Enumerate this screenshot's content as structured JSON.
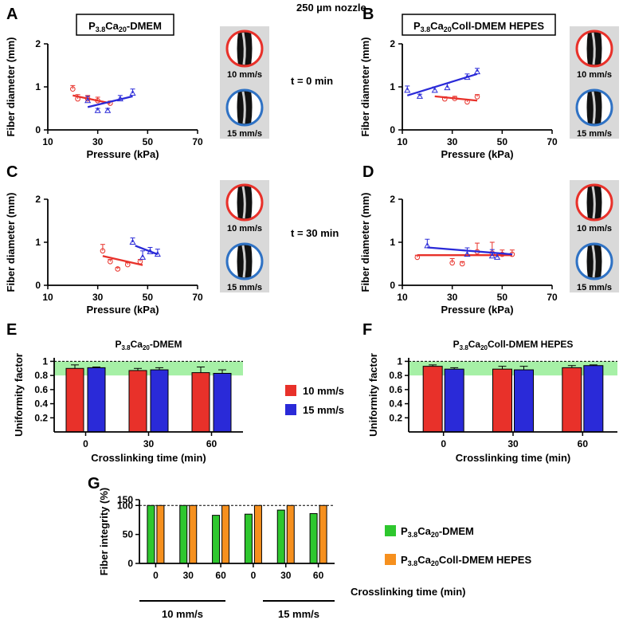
{
  "header": "250 µm nozzle",
  "colors": {
    "red": "#e8312a",
    "blue": "#2a2ad8",
    "green": "#2ec72e",
    "orange": "#f6901e",
    "band": "#a6f0a6",
    "grey": "#d9d9d9"
  },
  "legend_speeds": [
    "10 mm/s",
    "15 mm/s"
  ],
  "time_labels": [
    "t = 0 min",
    "t = 30 min"
  ],
  "chart_data": [
    {
      "panel": "A",
      "type": "scatter",
      "title": "P3.8Ca20-DMEM",
      "xlabel": "Pressure (kPa)",
      "ylabel": "Fiber diameter (mm)",
      "xlim": [
        10,
        70
      ],
      "ylim": [
        0,
        2
      ],
      "xticks": [
        10,
        30,
        50,
        70
      ],
      "yticks": [
        0,
        1,
        2
      ],
      "series": [
        {
          "name": "10 mm/s",
          "color": "red",
          "points": [
            [
              20,
              0.95,
              0.08
            ],
            [
              22,
              0.72,
              0.1
            ],
            [
              26,
              0.72,
              0.08
            ],
            [
              30,
              0.68,
              0.08
            ],
            [
              35,
              0.62,
              0.05
            ]
          ],
          "fit": [
            [
              20,
              0.8
            ],
            [
              35,
              0.62
            ]
          ]
        },
        {
          "name": "15 mm/s",
          "color": "blue",
          "points": [
            [
              26,
              0.68,
              0.1
            ],
            [
              30,
              0.45,
              0.05
            ],
            [
              34,
              0.45,
              0.05
            ],
            [
              39,
              0.72,
              0.08
            ],
            [
              44,
              0.85,
              0.1
            ]
          ],
          "fit": [
            [
              26,
              0.53
            ],
            [
              44,
              0.78
            ]
          ]
        }
      ]
    },
    {
      "panel": "B",
      "type": "scatter",
      "title": "P3.8Ca20Coll-DMEM HEPES",
      "xlabel": "Pressure (kPa)",
      "ylabel": "Fiber diameter (mm)",
      "xlim": [
        10,
        70
      ],
      "ylim": [
        0,
        2
      ],
      "xticks": [
        10,
        30,
        50,
        70
      ],
      "yticks": [
        0,
        1,
        2
      ],
      "series": [
        {
          "name": "10 mm/s",
          "color": "red",
          "points": [
            [
              27,
              0.72,
              0.05
            ],
            [
              31,
              0.73,
              0.05
            ],
            [
              36,
              0.65,
              0.05
            ],
            [
              40,
              0.77,
              0.05
            ]
          ],
          "fit": [
            [
              23,
              0.78
            ],
            [
              40,
              0.68
            ]
          ]
        },
        {
          "name": "15 mm/s",
          "color": "blue",
          "points": [
            [
              12,
              0.92,
              0.1
            ],
            [
              17,
              0.78,
              0.05
            ],
            [
              23,
              0.92,
              0.08
            ],
            [
              28,
              0.98,
              0.1
            ],
            [
              36,
              1.22,
              0.08
            ],
            [
              40,
              1.35,
              0.08
            ]
          ],
          "fit": [
            [
              12,
              0.8
            ],
            [
              40,
              1.3
            ]
          ]
        }
      ]
    },
    {
      "panel": "C",
      "type": "scatter",
      "title": "",
      "xlabel": "Pressure (kPa)",
      "ylabel": "Fiber diameter (mm)",
      "xlim": [
        10,
        70
      ],
      "ylim": [
        0,
        2
      ],
      "xticks": [
        10,
        30,
        50,
        70
      ],
      "yticks": [
        0,
        1,
        2
      ],
      "series": [
        {
          "name": "10 mm/s",
          "color": "red",
          "points": [
            [
              32,
              0.8,
              0.15
            ],
            [
              35,
              0.55,
              0.05
            ],
            [
              38,
              0.38,
              0.03
            ],
            [
              42,
              0.48,
              0.05
            ],
            [
              47,
              0.55,
              0.05
            ]
          ],
          "fit": [
            [
              32,
              0.68
            ],
            [
              48,
              0.47
            ]
          ]
        },
        {
          "name": "15 mm/s",
          "color": "blue",
          "points": [
            [
              44,
              1.0,
              0.1
            ],
            [
              48,
              0.65,
              0.15
            ],
            [
              51,
              0.78,
              0.1
            ],
            [
              54,
              0.72,
              0.12
            ]
          ],
          "fit": [
            [
              45,
              0.92
            ],
            [
              54,
              0.72
            ]
          ]
        }
      ]
    },
    {
      "panel": "D",
      "type": "scatter",
      "title": "",
      "xlabel": "Pressure (kPa)",
      "ylabel": "Fiber diameter (mm)",
      "xlim": [
        10,
        70
      ],
      "ylim": [
        0,
        2
      ],
      "xticks": [
        10,
        30,
        50,
        70
      ],
      "yticks": [
        0,
        1,
        2
      ],
      "series": [
        {
          "name": "10 mm/s",
          "color": "red",
          "points": [
            [
              16,
              0.65,
              0.05
            ],
            [
              30,
              0.52,
              0.1
            ],
            [
              34,
              0.5,
              0.05
            ],
            [
              40,
              0.78,
              0.2
            ],
            [
              46,
              0.75,
              0.25
            ],
            [
              50,
              0.72,
              0.1
            ],
            [
              54,
              0.72,
              0.1
            ]
          ],
          "fit": [
            [
              16,
              0.7
            ],
            [
              54,
              0.7
            ]
          ]
        },
        {
          "name": "15 mm/s",
          "color": "blue",
          "points": [
            [
              20,
              0.92,
              0.15
            ],
            [
              36,
              0.72,
              0.15
            ],
            [
              46,
              0.68,
              0.15
            ],
            [
              48,
              0.65,
              0.1
            ]
          ],
          "fit": [
            [
              20,
              0.88
            ],
            [
              54,
              0.72
            ]
          ]
        }
      ]
    },
    {
      "panel": "E",
      "type": "bar",
      "title": "P3.8Ca20-DMEM",
      "xlabel": "Crosslinking time (min)",
      "ylabel": "Uniformity factor",
      "categories": [
        "0",
        "30",
        "60"
      ],
      "ylim": [
        0,
        1.05
      ],
      "yticks": [
        0.2,
        0.4,
        0.6,
        0.8,
        1.0
      ],
      "band": [
        0.8,
        1.0
      ],
      "series": [
        {
          "name": "10 mm/s",
          "color": "red",
          "values": [
            0.9,
            0.87,
            0.84
          ],
          "errors": [
            0.05,
            0.03,
            0.08
          ]
        },
        {
          "name": "15 mm/s",
          "color": "blue",
          "values": [
            0.91,
            0.88,
            0.83
          ],
          "errors": [
            0.01,
            0.03,
            0.05
          ]
        }
      ]
    },
    {
      "panel": "F",
      "type": "bar",
      "title": "P3.8Ca20Coll-DMEM HEPES",
      "xlabel": "Crosslinking time (min)",
      "ylabel": "Uniformity factor",
      "categories": [
        "0",
        "30",
        "60"
      ],
      "ylim": [
        0,
        1.05
      ],
      "yticks": [
        0.2,
        0.4,
        0.6,
        0.8,
        1.0
      ],
      "band": [
        0.8,
        1.0
      ],
      "series": [
        {
          "name": "10 mm/s",
          "color": "red",
          "values": [
            0.93,
            0.89,
            0.91
          ],
          "errors": [
            0.02,
            0.04,
            0.03
          ]
        },
        {
          "name": "15 mm/s",
          "color": "blue",
          "values": [
            0.89,
            0.88,
            0.94
          ],
          "errors": [
            0.02,
            0.05,
            0.01
          ]
        }
      ]
    },
    {
      "panel": "G",
      "type": "bar",
      "title": "",
      "xlabel": "Crosslinking time (min)",
      "ylabel": "Fiber integrity (%)",
      "categories": [
        "0",
        "30",
        "60",
        "0",
        "30",
        "60"
      ],
      "groups": [
        "10 mm/s",
        "15 mm/s"
      ],
      "ylim": [
        0,
        110
      ],
      "yticks": [
        0,
        50,
        100,
        150
      ],
      "series": [
        {
          "name": "P3.8Ca20-DMEM",
          "color": "green",
          "values": [
            100,
            100,
            83,
            85,
            92,
            86
          ]
        },
        {
          "name": "P3.8Ca20Coll-DMEM HEPES",
          "color": "orange",
          "values": [
            100,
            100,
            100,
            100,
            100,
            100
          ]
        }
      ]
    }
  ]
}
